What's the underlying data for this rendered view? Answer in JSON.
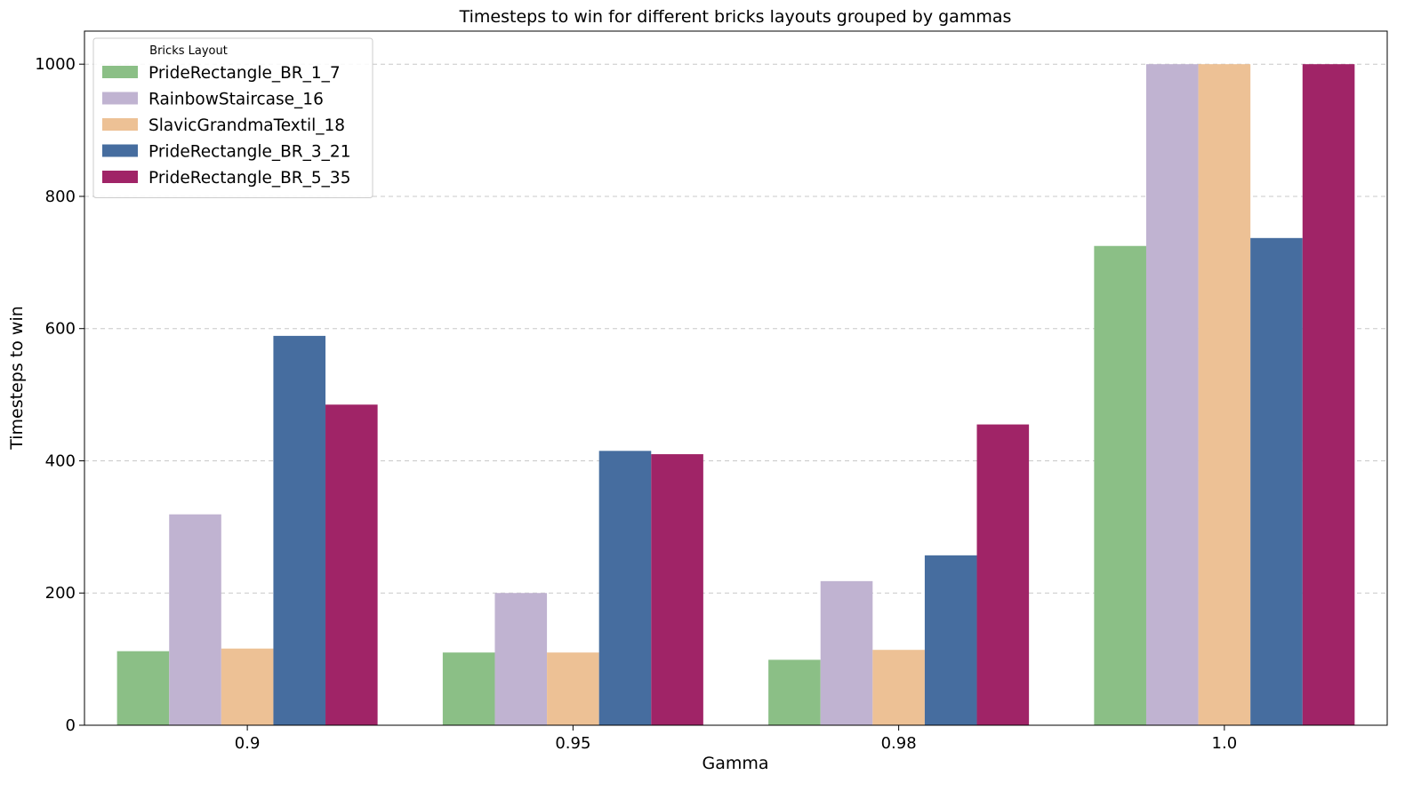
{
  "chart_data": {
    "type": "bar",
    "title": "Timesteps to win for different bricks layouts  grouped by gammas",
    "xlabel": "Gamma",
    "ylabel": "Timesteps to win",
    "categories": [
      "0.9",
      "0.95",
      "0.98",
      "1.0"
    ],
    "ylim": [
      0,
      1050
    ],
    "yticks": [
      0,
      200,
      400,
      600,
      800,
      1000
    ],
    "grid": "y-dashed",
    "legend": {
      "title": "Bricks Layout",
      "placement": "top-left"
    },
    "series": [
      {
        "name": "PrideRectangle_BR_1_7",
        "color": "#8bbf86",
        "values": [
          112,
          110,
          99,
          725
        ]
      },
      {
        "name": "RainbowStaircase_16",
        "color": "#c0b3d1",
        "values": [
          319,
          200,
          218,
          1000
        ]
      },
      {
        "name": "SlavicGrandmaTextil_18",
        "color": "#edc195",
        "values": [
          116,
          110,
          114,
          1000
        ]
      },
      {
        "name": "PrideRectangle_BR_3_21",
        "color": "#466d9f",
        "values": [
          589,
          415,
          257,
          737
        ]
      },
      {
        "name": "PrideRectangle_BR_5_35",
        "color": "#a02467",
        "values": [
          485,
          410,
          455,
          1000
        ]
      }
    ]
  }
}
